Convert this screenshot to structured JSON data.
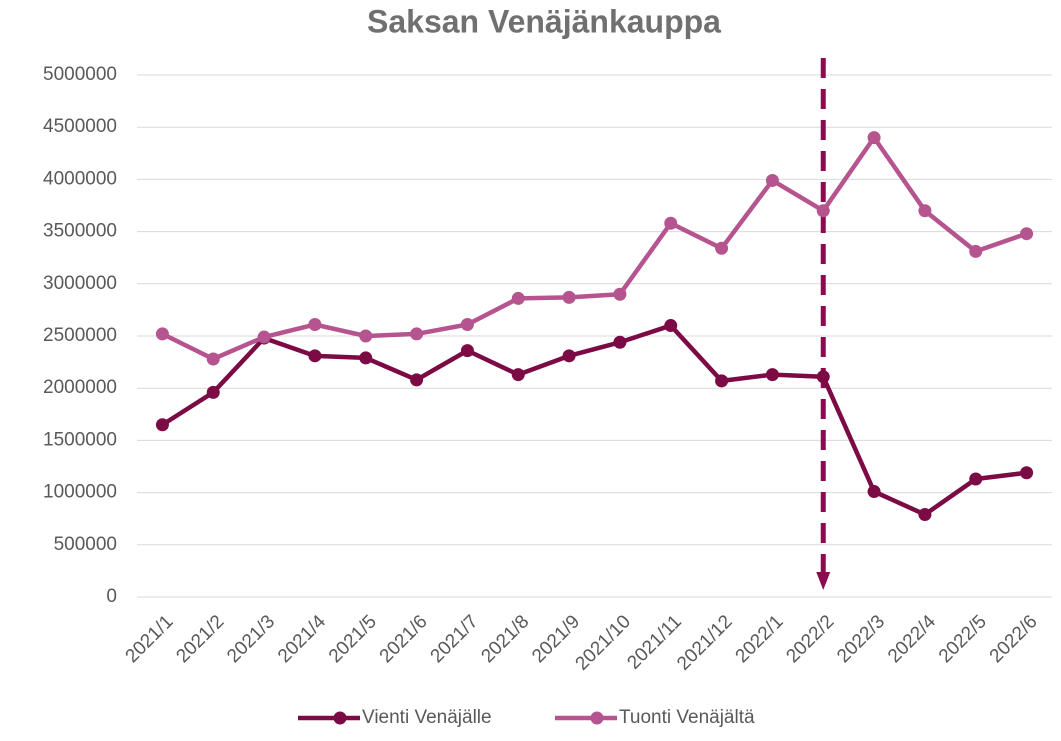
{
  "chart_data": {
    "type": "line",
    "title": "Saksan Venäjänkauppa",
    "categories": [
      "2021/1",
      "2021/2",
      "2021/3",
      "2021/4",
      "2021/5",
      "2021/6",
      "2021/7",
      "2021/8",
      "2021/9",
      "2021/10",
      "2021/11",
      "2021/12",
      "2022/1",
      "2022/2",
      "2022/3",
      "2022/4",
      "2022/5",
      "2022/6"
    ],
    "series": [
      {
        "name": "Vienti Venäjälle",
        "color": "#7b0a45",
        "values": [
          1650000,
          1960000,
          2480000,
          2310000,
          2290000,
          2080000,
          2360000,
          2130000,
          2310000,
          2440000,
          2600000,
          2070000,
          2130000,
          2110000,
          1010000,
          790000,
          1130000,
          1190000
        ]
      },
      {
        "name": "Tuonti Venäjältä",
        "color": "#b5548f",
        "values": [
          2520000,
          2280000,
          2490000,
          2610000,
          2500000,
          2520000,
          2610000,
          2860000,
          2870000,
          2900000,
          3580000,
          3340000,
          3990000,
          3700000,
          4400000,
          3700000,
          3310000,
          3480000
        ]
      }
    ],
    "ylim": [
      0,
      5000000
    ],
    "yticks": [
      0,
      500000,
      1000000,
      1500000,
      2000000,
      2500000,
      3000000,
      3500000,
      4000000,
      4500000,
      5000000
    ],
    "grid": true,
    "legend": "bottom"
  }
}
